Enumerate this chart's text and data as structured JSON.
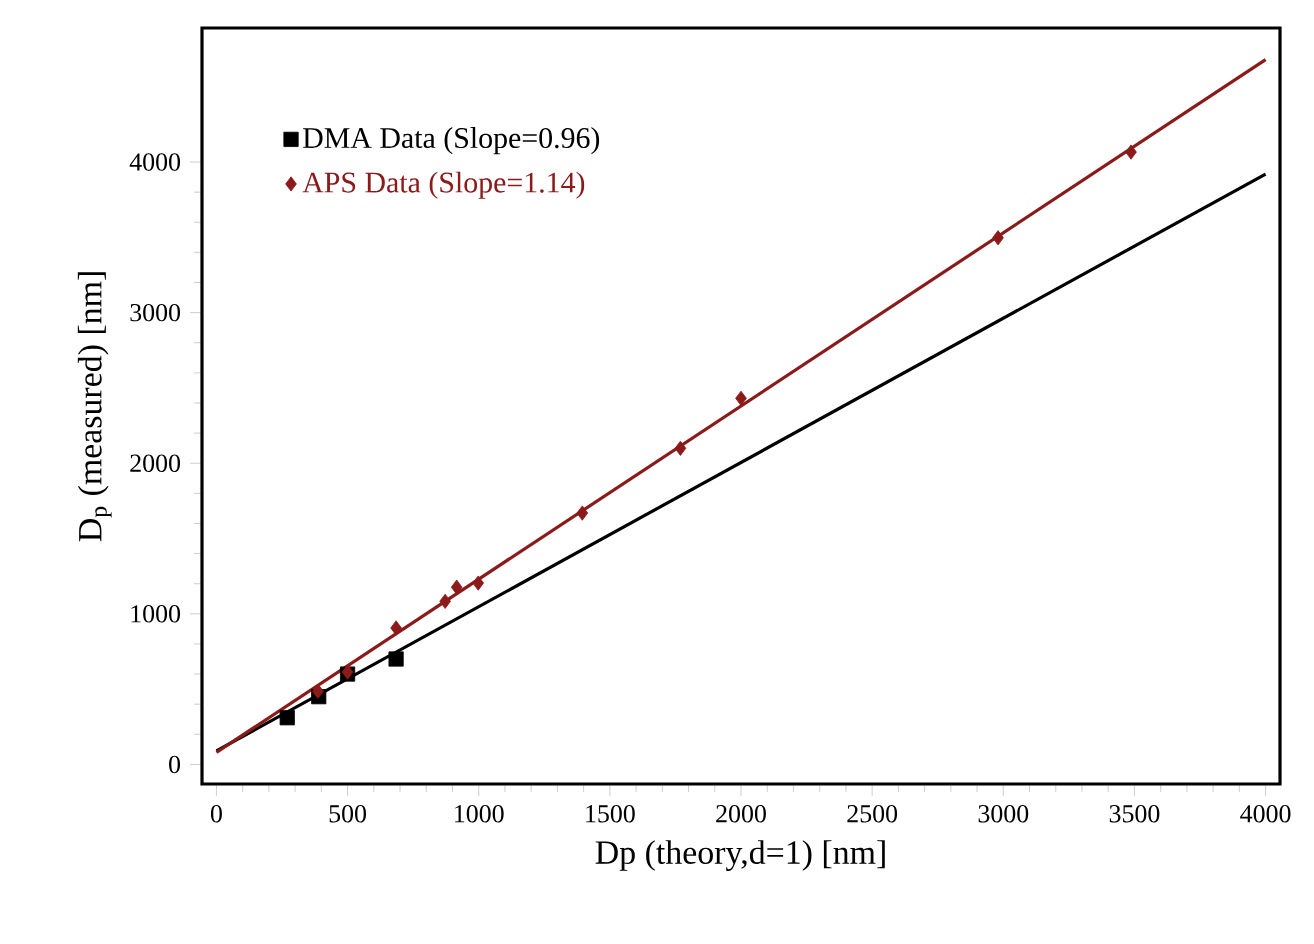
{
  "chart_data": {
    "type": "scatter",
    "xlabel": "Dp (theory,d=1) [nm]",
    "ylabel": "D$_{p}$ (measured) [nm]",
    "xlim": [
      -55,
      4055
    ],
    "ylim": [
      -130,
      4890
    ],
    "xticks": [
      0,
      500,
      1000,
      1500,
      2000,
      2500,
      3000,
      3500,
      4000
    ],
    "yticks": [
      0,
      1000,
      2000,
      3000,
      4000
    ],
    "grid": false,
    "legend": "top left",
    "series": [
      {
        "name": "DMA Data (Slope=0.96)",
        "color": "#000000",
        "marker": "square",
        "x": [
          270,
          390,
          500,
          685
        ],
        "values": [
          310,
          450,
          600,
          700
        ]
      },
      {
        "name": "APS Data (Slope=1.14)",
        "color": "#8b1a1a",
        "marker": "diamond",
        "x": [
          387,
          500,
          685,
          872,
          916,
          998,
          1395,
          1769,
          2000,
          2980,
          3487
        ],
        "values": [
          486,
          613,
          906,
          1083,
          1177,
          1204,
          1669,
          2099,
          2431,
          3497,
          4066
        ]
      },
      {
        "type": "line",
        "color": "#000000",
        "x": [
          0,
          4000
        ],
        "values": [
          90,
          3920
        ]
      },
      {
        "type": "line",
        "color": "#8b1a1a",
        "x": [
          0,
          4000
        ],
        "values": [
          80,
          4680
        ]
      }
    ]
  }
}
